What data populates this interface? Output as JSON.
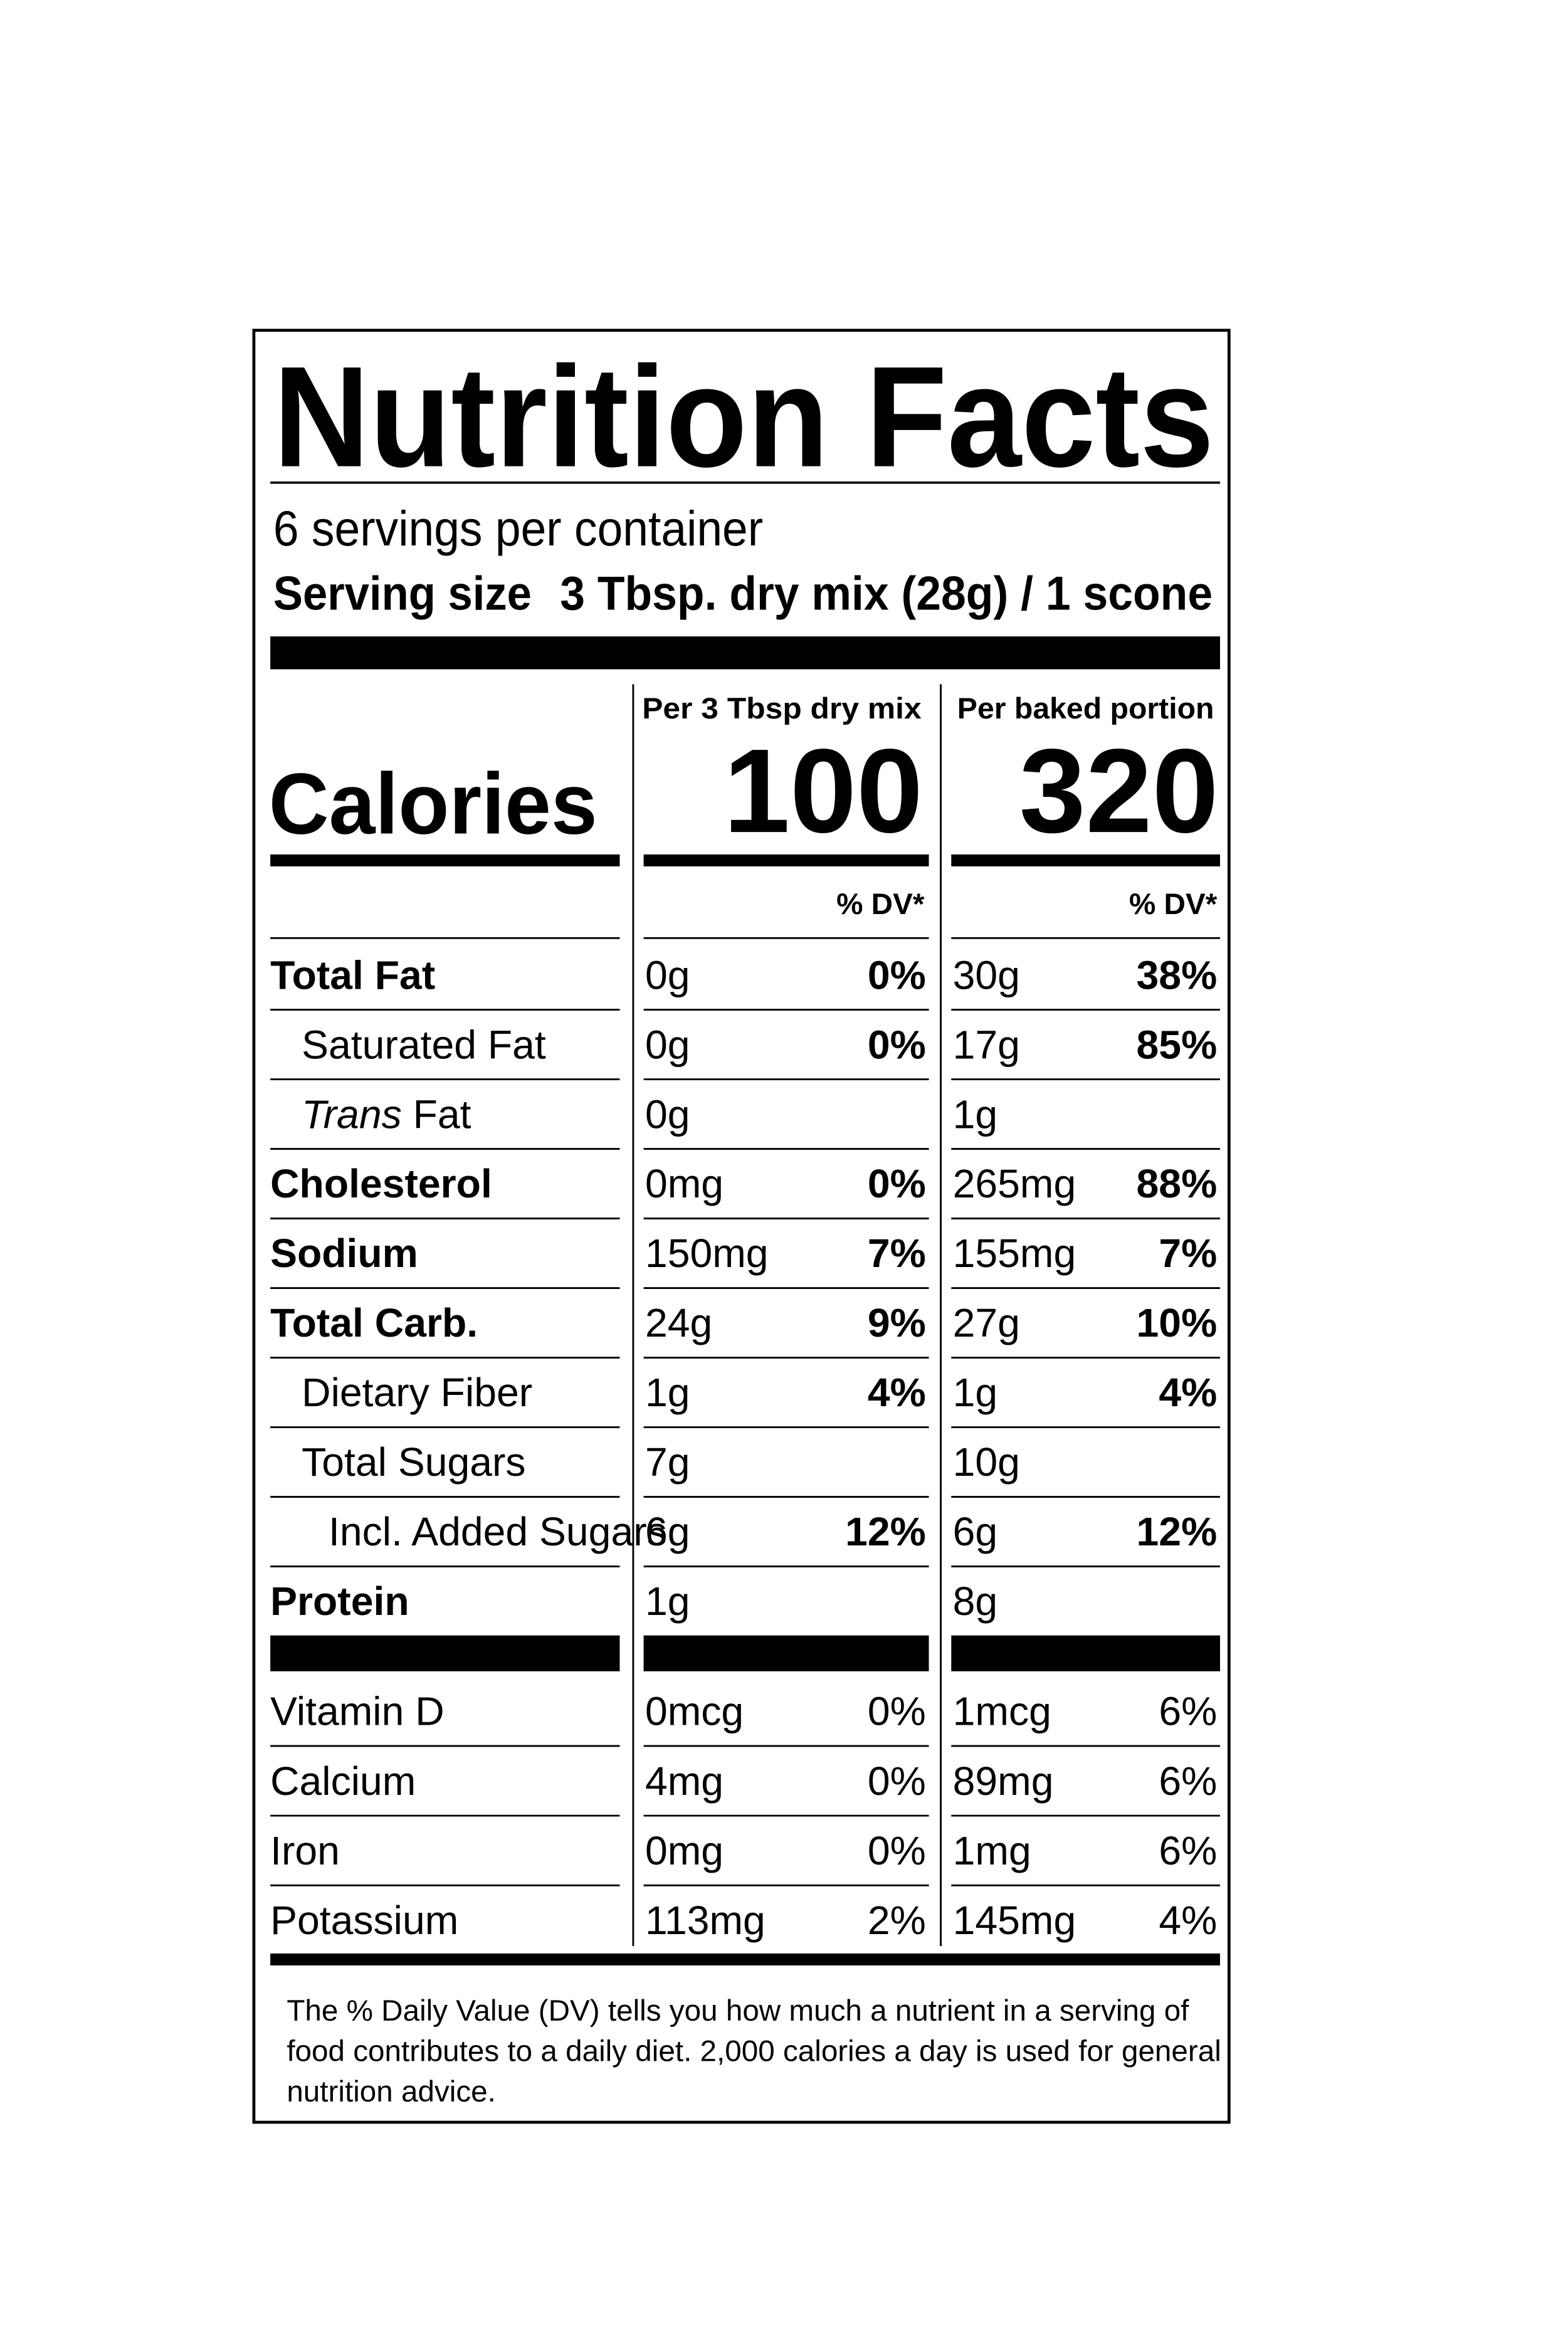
{
  "title": "Nutrition Facts",
  "servings": "6 servings per container",
  "serving_size": {
    "label": "Serving size",
    "value": "3 Tbsp. dry mix (28g) / 1 scone"
  },
  "columns": [
    "Per 3 Tbsp dry mix",
    "Per baked portion"
  ],
  "calories": {
    "label": "Calories",
    "values": [
      "100",
      "320"
    ]
  },
  "dv_header": "% DV*",
  "nutrients": [
    {
      "name": "Total Fat",
      "bold": true,
      "indent": 0,
      "amounts": [
        "0g",
        "30g"
      ],
      "dv": [
        "0%",
        "38%"
      ]
    },
    {
      "name": "Saturated Fat",
      "bold": false,
      "indent": 1,
      "amounts": [
        "0g",
        "17g"
      ],
      "dv": [
        "0%",
        "85%"
      ]
    },
    {
      "name_italic": "Trans",
      "name": "Fat",
      "bold": false,
      "indent": 1,
      "amounts": [
        "0g",
        "1g"
      ],
      "dv": null
    },
    {
      "name": "Cholesterol",
      "bold": true,
      "indent": 0,
      "amounts": [
        "0mg",
        "265mg"
      ],
      "dv": [
        "0%",
        "88%"
      ]
    },
    {
      "name": "Sodium",
      "bold": true,
      "indent": 0,
      "amounts": [
        "150mg",
        "155mg"
      ],
      "dv": [
        "7%",
        "7%"
      ]
    },
    {
      "name": "Total Carb.",
      "bold": true,
      "indent": 0,
      "amounts": [
        "24g",
        "27g"
      ],
      "dv": [
        "9%",
        "10%"
      ]
    },
    {
      "name": "Dietary Fiber",
      "bold": false,
      "indent": 1,
      "amounts": [
        "1g",
        "1g"
      ],
      "dv": [
        "4%",
        "4%"
      ]
    },
    {
      "name": "Total Sugars",
      "bold": false,
      "indent": 1,
      "amounts": [
        "7g",
        "10g"
      ],
      "dv": null
    },
    {
      "name": "Incl. Added Sugars",
      "bold": false,
      "indent": 2,
      "amounts": [
        "6g",
        "6g"
      ],
      "dv": [
        "12%",
        "12%"
      ]
    },
    {
      "name": "Protein",
      "bold": true,
      "indent": 0,
      "amounts": [
        "1g",
        "8g"
      ],
      "dv": null
    }
  ],
  "vitamins": [
    {
      "name": "Vitamin D",
      "amounts": [
        "0mcg",
        "1mcg"
      ],
      "dv": [
        "0%",
        "6%"
      ]
    },
    {
      "name": "Calcium",
      "amounts": [
        "4mg",
        "89mg"
      ],
      "dv": [
        "0%",
        "6%"
      ]
    },
    {
      "name": "Iron",
      "amounts": [
        "0mg",
        "1mg"
      ],
      "dv": [
        "0%",
        "6%"
      ]
    },
    {
      "name": "Potassium",
      "amounts": [
        "113mg",
        "145mg"
      ],
      "dv": [
        "2%",
        "4%"
      ]
    }
  ],
  "footnote": [
    "The % Daily Value (DV) tells you how much a nutrient in a serving of",
    "food contributes to a daily diet. 2,000 calories a day is used for general",
    "nutrition advice."
  ]
}
